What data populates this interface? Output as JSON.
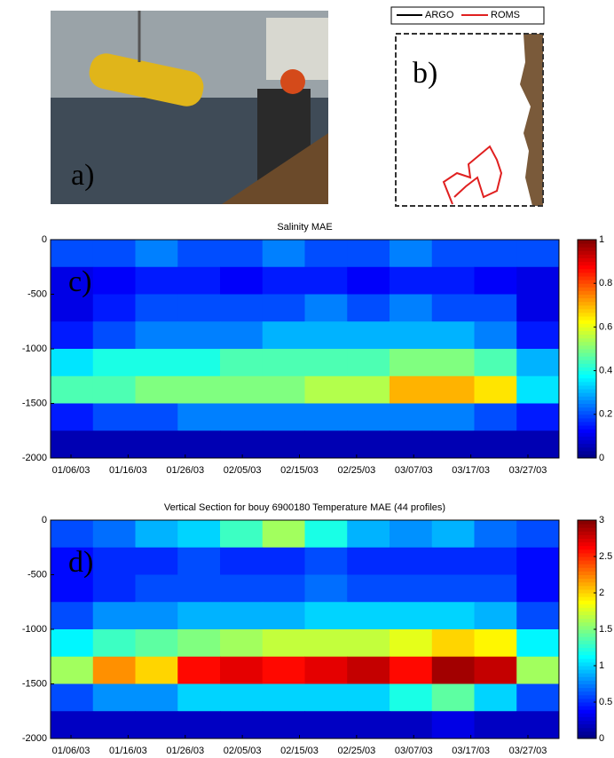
{
  "chart_data": [
    {
      "type": "image",
      "label": "a)"
    },
    {
      "type": "map",
      "label": "b)",
      "series": [
        {
          "name": "ARGO",
          "color": "#000000"
        },
        {
          "name": "ROMS",
          "color": "#e02020"
        }
      ]
    },
    {
      "type": "heatmap",
      "title": "Salinity MAE",
      "label": "c)",
      "xticks": [
        "01/06/03",
        "01/16/03",
        "01/26/03",
        "02/05/03",
        "02/15/03",
        "02/25/03",
        "03/07/03",
        "03/17/03",
        "03/27/03"
      ],
      "ylim": [
        -2000,
        0
      ],
      "yticks": [
        0,
        -500,
        -1000,
        -1500,
        -2000
      ],
      "ybins": [
        0,
        -250,
        -500,
        -750,
        -1000,
        -1250,
        -1500,
        -1750,
        -2000
      ],
      "clim": [
        0,
        1
      ],
      "cticks": [
        0,
        0.2,
        0.4,
        0.6,
        0.8,
        1
      ],
      "z": [
        [
          0.2,
          0.2,
          0.25,
          0.2,
          0.2,
          0.25,
          0.2,
          0.2,
          0.25,
          0.2,
          0.2,
          0.2
        ],
        [
          0.1,
          0.12,
          0.15,
          0.15,
          0.12,
          0.15,
          0.15,
          0.12,
          0.15,
          0.15,
          0.12,
          0.1
        ],
        [
          0.1,
          0.15,
          0.2,
          0.2,
          0.2,
          0.2,
          0.25,
          0.2,
          0.25,
          0.2,
          0.2,
          0.1
        ],
        [
          0.15,
          0.2,
          0.25,
          0.25,
          0.25,
          0.3,
          0.3,
          0.3,
          0.3,
          0.3,
          0.25,
          0.15
        ],
        [
          0.35,
          0.4,
          0.4,
          0.4,
          0.45,
          0.45,
          0.45,
          0.45,
          0.5,
          0.5,
          0.45,
          0.3
        ],
        [
          0.45,
          0.45,
          0.5,
          0.5,
          0.5,
          0.5,
          0.55,
          0.55,
          0.7,
          0.7,
          0.65,
          0.35
        ],
        [
          0.15,
          0.2,
          0.2,
          0.25,
          0.25,
          0.25,
          0.25,
          0.25,
          0.25,
          0.25,
          0.2,
          0.15
        ],
        [
          0.05,
          0.05,
          0.05,
          0.05,
          0.05,
          0.05,
          0.05,
          0.05,
          0.05,
          0.05,
          0.05,
          0.05
        ]
      ]
    },
    {
      "type": "heatmap",
      "title": "Vertical Section for bouy 6900180 Temperature MAE (44 profiles)",
      "label": "d)",
      "xticks": [
        "01/06/03",
        "01/16/03",
        "01/26/03",
        "02/05/03",
        "02/15/03",
        "02/25/03",
        "03/07/03",
        "03/17/03",
        "03/27/03"
      ],
      "ylim": [
        -2000,
        0
      ],
      "yticks": [
        0,
        -500,
        -1000,
        -1500,
        -2000
      ],
      "ybins": [
        0,
        -250,
        -500,
        -750,
        -1000,
        -1250,
        -1500,
        -1750,
        -2000
      ],
      "clim": [
        0,
        3
      ],
      "cticks": [
        0,
        0.5,
        1,
        1.5,
        2,
        2.5,
        3
      ],
      "z": [
        [
          0.6,
          0.7,
          0.9,
          1.0,
          1.3,
          1.6,
          1.2,
          0.9,
          0.8,
          0.9,
          0.7,
          0.6
        ],
        [
          0.4,
          0.5,
          0.5,
          0.6,
          0.5,
          0.5,
          0.6,
          0.5,
          0.5,
          0.5,
          0.5,
          0.4
        ],
        [
          0.4,
          0.5,
          0.6,
          0.6,
          0.6,
          0.6,
          0.7,
          0.6,
          0.6,
          0.6,
          0.6,
          0.4
        ],
        [
          0.6,
          0.8,
          0.8,
          0.9,
          0.9,
          0.9,
          1.0,
          1.0,
          1.0,
          1.0,
          0.9,
          0.6
        ],
        [
          1.1,
          1.3,
          1.4,
          1.5,
          1.6,
          1.7,
          1.7,
          1.7,
          1.8,
          2.0,
          1.9,
          1.1
        ],
        [
          1.6,
          2.2,
          2.0,
          2.6,
          2.7,
          2.6,
          2.7,
          2.8,
          2.6,
          2.9,
          2.8,
          1.6
        ],
        [
          0.6,
          0.8,
          0.8,
          1.0,
          1.0,
          1.0,
          1.0,
          1.0,
          1.2,
          1.4,
          1.0,
          0.6
        ],
        [
          0.2,
          0.2,
          0.2,
          0.2,
          0.2,
          0.2,
          0.2,
          0.2,
          0.2,
          0.3,
          0.2,
          0.2
        ]
      ]
    }
  ]
}
